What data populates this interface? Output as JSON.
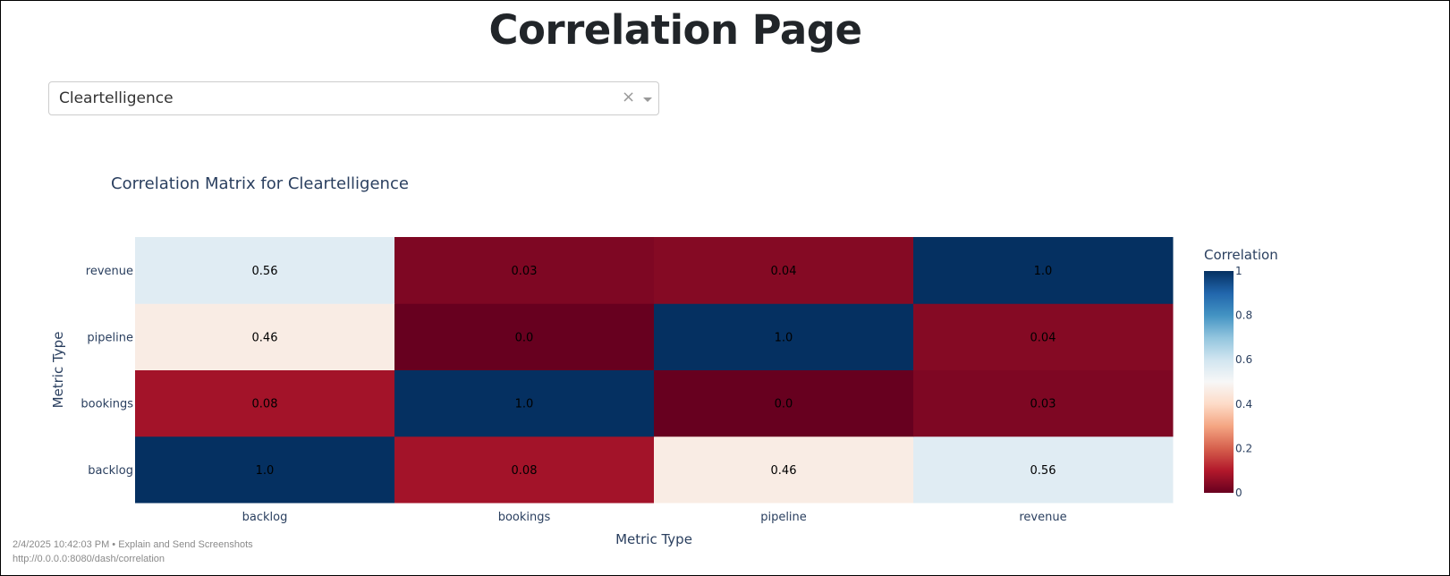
{
  "page": {
    "title": "Correlation Page"
  },
  "dropdown": {
    "value": "Cleartelligence",
    "clear_label": "×"
  },
  "chart_data": {
    "type": "heatmap",
    "title": "Correlation Matrix for Cleartelligence",
    "xlabel": "Metric Type",
    "ylabel": "Metric Type",
    "x": [
      "backlog",
      "bookings",
      "pipeline",
      "revenue"
    ],
    "y": [
      "backlog",
      "bookings",
      "pipeline",
      "revenue"
    ],
    "z": [
      [
        1.0,
        0.08,
        0.46,
        0.56
      ],
      [
        0.08,
        1.0,
        0.0,
        0.03
      ],
      [
        0.46,
        0.0,
        1.0,
        0.04
      ],
      [
        0.56,
        0.03,
        0.04,
        1.0
      ]
    ],
    "z_labels": [
      [
        "1.0",
        "0.08",
        "0.46",
        "0.56"
      ],
      [
        "0.08",
        "1.0",
        "0.0",
        "0.03"
      ],
      [
        "0.46",
        "0.0",
        "1.0",
        "0.04"
      ],
      [
        "0.56",
        "0.03",
        "0.04",
        "1.0"
      ]
    ],
    "zlim": [
      0,
      1
    ],
    "colorscale": "RdBu",
    "colorbar": {
      "title": "Correlation",
      "ticks": [
        0,
        0.2,
        0.4,
        0.6,
        0.8,
        1
      ],
      "tick_labels": [
        "0",
        "0.2",
        "0.4",
        "0.6",
        "0.8",
        "1"
      ]
    },
    "colors": {
      "scale": [
        "#67001f",
        "#b2182b",
        "#d6604d",
        "#f4a582",
        "#fddbc7",
        "#f7f7f7",
        "#d1e5f0",
        "#92c5de",
        "#4393c3",
        "#2166ac",
        "#053061"
      ],
      "title_text": "#2a3f5f",
      "tick_text": "#2a3f5f"
    }
  },
  "footer": {
    "timestamp": "2/4/2025 10:42:03 PM • Explain and Send Screenshots",
    "url": "http://0.0.0.0:8080/dash/correlation"
  }
}
